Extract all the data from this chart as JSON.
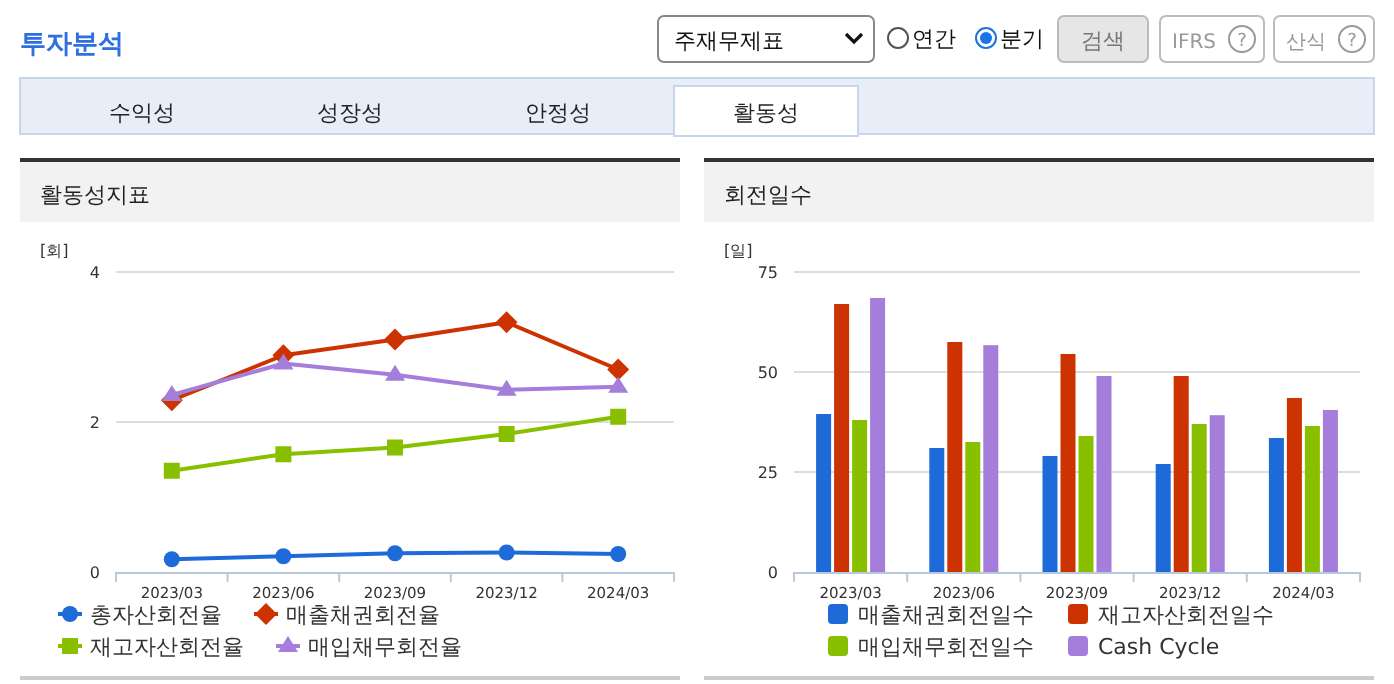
{
  "chart_data": [
    {
      "type": "other",
      "title": "투자분석",
      "annotations": [
        "주재무제표",
        "연간",
        "분기",
        "검색",
        "IFRS",
        "?",
        "산식",
        "?",
        "수익성",
        "성장성",
        "안정성",
        "활동성"
      ]
    },
    {
      "type": "line",
      "title": "활동성지표",
      "ylabel": "[회]",
      "categories": [
        "2023/03",
        "2023/06",
        "2023/09",
        "2023/12",
        "2024/03"
      ],
      "ylim": [
        0,
        4
      ],
      "yticks": [
        0,
        2,
        4
      ],
      "grid": "y",
      "legend": "bottom",
      "series": [
        {
          "name": "총자산회전율",
          "color": "#1f6ad9",
          "marker": "circle",
          "values": [
            0.17,
            0.21,
            0.25,
            0.26,
            0.24
          ]
        },
        {
          "name": "매출채권회전율",
          "color": "#cc3300",
          "marker": "diamond",
          "values": [
            2.29,
            2.89,
            3.1,
            3.33,
            2.7
          ]
        },
        {
          "name": "재고자산회전율",
          "color": "#88c000",
          "marker": "square",
          "values": [
            1.35,
            1.57,
            1.66,
            1.84,
            2.07
          ]
        },
        {
          "name": "매입채무회전율",
          "color": "#a57ddb",
          "marker": "triangle",
          "values": [
            2.36,
            2.78,
            2.63,
            2.43,
            2.47
          ]
        }
      ]
    },
    {
      "type": "bar",
      "title": "회전일수",
      "ylabel": "[일]",
      "categories": [
        "2023/03",
        "2023/06",
        "2023/09",
        "2023/12",
        "2024/03"
      ],
      "ylim": [
        0,
        75
      ],
      "yticks": [
        0,
        25,
        50,
        75
      ],
      "grid": "y",
      "legend": "bottom",
      "series": [
        {
          "name": "매출채권회전일수",
          "color": "#1f6ad9",
          "values": [
            39.5,
            31,
            29,
            27,
            33.5
          ]
        },
        {
          "name": "재고자산회전일수",
          "color": "#cc3300",
          "values": [
            67,
            57.5,
            54.5,
            49,
            43.5
          ]
        },
        {
          "name": "매입채무회전일수",
          "color": "#88c000",
          "values": [
            38,
            32.5,
            34,
            37,
            36.5
          ]
        },
        {
          "name": "Cash Cycle",
          "color": "#a57ddb",
          "values": [
            68.5,
            56.7,
            49,
            39.2,
            40.5
          ]
        }
      ]
    }
  ]
}
